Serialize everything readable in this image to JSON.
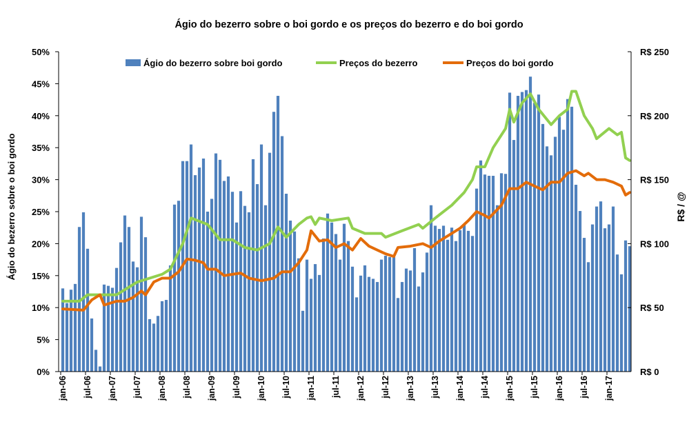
{
  "chart_data": {
    "type": "bar+line",
    "title": "Ágio do bezerro sobre o boi gordo e os preços do bezerro e do boi gordo",
    "ylabel_left": "Ágio do bezerro sobre o boi gordo",
    "ylabel_right": "R$ / @",
    "ylim_left": [
      0,
      50
    ],
    "ylim_right": [
      0,
      250
    ],
    "left_ticks": [
      "0%",
      "5%",
      "10%",
      "15%",
      "20%",
      "25%",
      "30%",
      "35%",
      "40%",
      "45%",
      "50%"
    ],
    "right_ticks": [
      "R$ 0",
      "R$ 50",
      "R$ 100",
      "R$ 150",
      "R$ 200",
      "R$ 250"
    ],
    "x_start": "jan-06",
    "x_unit": "month index since jan-06",
    "x_tick_labels": [
      "jan-06",
      "jul-06",
      "jan-07",
      "jul-07",
      "jan-08",
      "jul-08",
      "jan-09",
      "jul-09",
      "jan-10",
      "jul-10",
      "jan-11",
      "jul-11",
      "jan-12",
      "jul-12",
      "jan-13",
      "jul-13",
      "jan-14",
      "jul-14",
      "jan-15",
      "jul-15",
      "jan-16",
      "jul-16",
      "jan-17"
    ],
    "grid": false,
    "legend_position": "top",
    "colors": {
      "bar": "#4f81bd",
      "bezerro": "#92d050",
      "boi": "#e36c0a",
      "axis": "#000000"
    },
    "series": [
      {
        "name": "Ágio do bezerro sobre boi gordo",
        "type": "bar",
        "axis": "left",
        "values": [
          13.0,
          10.7,
          12.8,
          13.7,
          22.6,
          24.9,
          19.2,
          8.3,
          3.4,
          0.8,
          13.6,
          13.4,
          13.1,
          16.2,
          20.2,
          24.4,
          22.6,
          17.2,
          16.3,
          24.2,
          21.0,
          8.2,
          7.5,
          8.7,
          11.0,
          11.2,
          16.6,
          26.1,
          26.7,
          32.9,
          32.9,
          35.5,
          30.7,
          31.9,
          33.3,
          25.0,
          27.0,
          34.1,
          33.1,
          29.8,
          30.5,
          28.1,
          23.3,
          28.2,
          25.9,
          24.9,
          33.2,
          29.3,
          35.5,
          26.0,
          34.2,
          40.6,
          43.1,
          36.8,
          27.8,
          23.6,
          21.9,
          17.7,
          9.5,
          17.5,
          14.5,
          16.8,
          15.1,
          20.8,
          24.7,
          23.3,
          21.5,
          17.5,
          23.1,
          20.4,
          16.4,
          11.6,
          15.0,
          16.6,
          14.8,
          14.5,
          14.0,
          17.5,
          18.1,
          17.9,
          17.9,
          11.5,
          14.0,
          16.1,
          15.8,
          19.3,
          13.3,
          15.5,
          18.6,
          26.0,
          22.8,
          22.3,
          22.8,
          20.6,
          22.5,
          20.4,
          22.1,
          23.0,
          22.0,
          21.2,
          28.6,
          33.0,
          30.8,
          30.6,
          30.6,
          26.0,
          31.0,
          30.9,
          43.6,
          36.2,
          43.1,
          43.7,
          44.0,
          46.1,
          42.0,
          43.3,
          38.7,
          35.2,
          33.8,
          36.7,
          39.8,
          37.8,
          42.6,
          41.4,
          29.2,
          25.1,
          20.9,
          17.1,
          23.0,
          25.8,
          26.6,
          22.4,
          23.0,
          25.8,
          18.3,
          15.2,
          20.5,
          19.6
        ]
      },
      {
        "name": "Preços do bezerro",
        "type": "line",
        "axis": "right",
        "points": [
          [
            0,
            55
          ],
          [
            4,
            55
          ],
          [
            6,
            60
          ],
          [
            11,
            60
          ],
          [
            13,
            60
          ],
          [
            18,
            70
          ],
          [
            24,
            76
          ],
          [
            26,
            80
          ],
          [
            29,
            100
          ],
          [
            31,
            120
          ],
          [
            35,
            115
          ],
          [
            38,
            103
          ],
          [
            41,
            103
          ],
          [
            44,
            97
          ],
          [
            47,
            95
          ],
          [
            50,
            100
          ],
          [
            52,
            113
          ],
          [
            54,
            105
          ],
          [
            57,
            115
          ],
          [
            59,
            120
          ],
          [
            60,
            121
          ],
          [
            61,
            115
          ],
          [
            62,
            120
          ],
          [
            65,
            118
          ],
          [
            69,
            120
          ],
          [
            70,
            112
          ],
          [
            73,
            108
          ],
          [
            77,
            108
          ],
          [
            78,
            105
          ],
          [
            82,
            110
          ],
          [
            86,
            115
          ],
          [
            87,
            112
          ],
          [
            90,
            120
          ],
          [
            94,
            130
          ],
          [
            97,
            140
          ],
          [
            99,
            150
          ],
          [
            100,
            160
          ],
          [
            102,
            160
          ],
          [
            104,
            175
          ],
          [
            107,
            190
          ],
          [
            108,
            205
          ],
          [
            109,
            195
          ],
          [
            111,
            210
          ],
          [
            113,
            217
          ],
          [
            115,
            205
          ],
          [
            117,
            197
          ],
          [
            118,
            193
          ],
          [
            120,
            200
          ],
          [
            122,
            205
          ],
          [
            123,
            219
          ],
          [
            124,
            219
          ],
          [
            126,
            200
          ],
          [
            128,
            190
          ],
          [
            129,
            182
          ],
          [
            132,
            190
          ],
          [
            134,
            185
          ],
          [
            135,
            187
          ],
          [
            136,
            167
          ],
          [
            137,
            165
          ]
        ]
      },
      {
        "name": "Preços do boi gordo",
        "type": "line",
        "axis": "right",
        "points": [
          [
            0,
            49
          ],
          [
            5,
            48
          ],
          [
            7,
            56
          ],
          [
            9,
            60
          ],
          [
            10,
            52
          ],
          [
            13,
            55
          ],
          [
            15,
            55
          ],
          [
            17,
            58
          ],
          [
            19,
            63
          ],
          [
            20,
            60
          ],
          [
            22,
            70
          ],
          [
            24,
            73
          ],
          [
            26,
            73
          ],
          [
            28,
            78
          ],
          [
            30,
            88
          ],
          [
            32,
            87
          ],
          [
            34,
            85
          ],
          [
            35,
            80
          ],
          [
            37,
            80
          ],
          [
            39,
            75
          ],
          [
            41,
            76
          ],
          [
            43,
            77
          ],
          [
            45,
            73
          ],
          [
            48,
            71
          ],
          [
            51,
            73
          ],
          [
            53,
            78
          ],
          [
            55,
            78
          ],
          [
            57,
            85
          ],
          [
            59,
            95
          ],
          [
            60,
            110
          ],
          [
            62,
            102
          ],
          [
            64,
            103
          ],
          [
            66,
            97
          ],
          [
            68,
            100
          ],
          [
            70,
            95
          ],
          [
            72,
            104
          ],
          [
            74,
            98
          ],
          [
            76,
            95
          ],
          [
            78,
            92
          ],
          [
            80,
            90
          ],
          [
            81,
            97
          ],
          [
            84,
            98
          ],
          [
            87,
            100
          ],
          [
            89,
            97
          ],
          [
            91,
            102
          ],
          [
            94,
            108
          ],
          [
            96,
            112
          ],
          [
            98,
            118
          ],
          [
            100,
            125
          ],
          [
            102,
            122
          ],
          [
            103,
            120
          ],
          [
            106,
            130
          ],
          [
            108,
            143
          ],
          [
            110,
            143
          ],
          [
            112,
            148
          ],
          [
            114,
            145
          ],
          [
            116,
            142
          ],
          [
            118,
            148
          ],
          [
            120,
            148
          ],
          [
            122,
            155
          ],
          [
            124,
            157
          ],
          [
            126,
            153
          ],
          [
            127,
            155
          ],
          [
            129,
            150
          ],
          [
            131,
            150
          ],
          [
            133,
            148
          ],
          [
            135,
            145
          ],
          [
            136,
            138
          ],
          [
            137,
            140
          ]
        ]
      }
    ]
  }
}
